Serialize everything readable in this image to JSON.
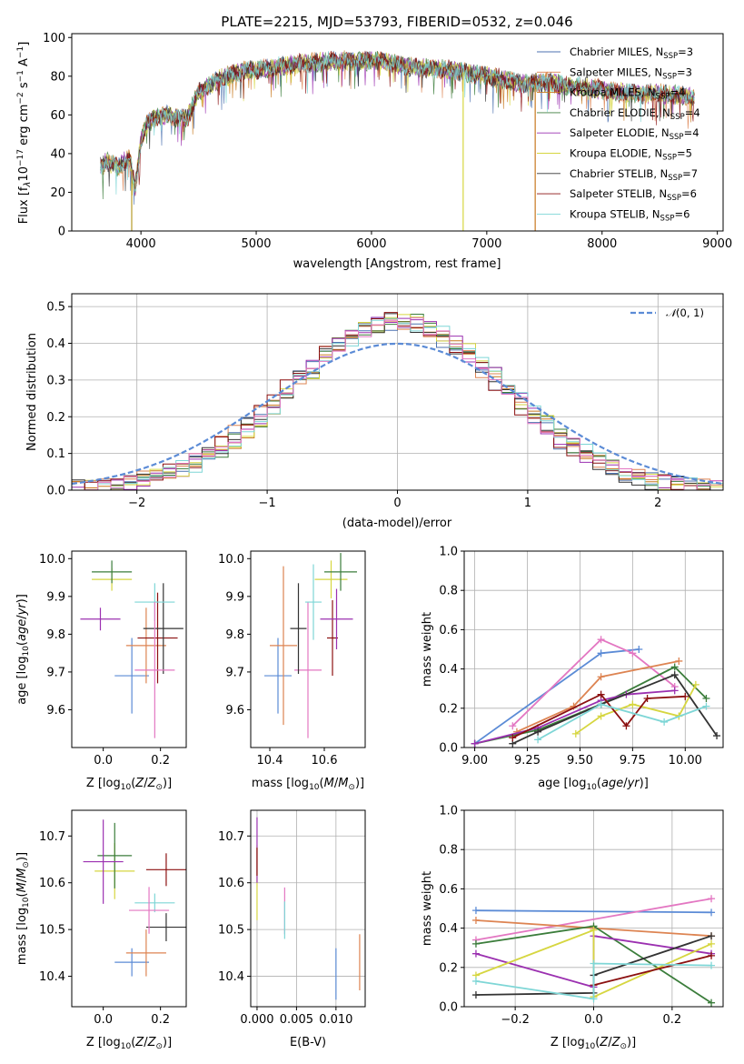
{
  "chart_data": [
    {
      "id": "spectrum",
      "type": "line",
      "title": "PLATE=2215, MJD=53793, FIBERID=0532, z=0.046",
      "xlabel": "wavelength [Angstrom, rest frame]",
      "ylabel": "Flux [f$_\\lambda$10$^{-17}$ erg cm$^{-2}$ s$^{-1}$ A$^{-1}$]",
      "xlim": [
        3400,
        9050
      ],
      "ylim": [
        0,
        102
      ],
      "xticks": [
        4000,
        5000,
        6000,
        7000,
        8000,
        9000
      ],
      "yticks": [
        0,
        20,
        40,
        60,
        80,
        100
      ],
      "legend_position": "upper-right",
      "legend": [
        {
          "name": "Chabrier MILES, N$_{SSP}$=3",
          "color": "#4c72b0"
        },
        {
          "name": "Salpeter MILES, N$_{SSP}$=3",
          "color": "#dd8452"
        },
        {
          "name": "Kroupa MILES, N$_{SSP}$=4",
          "color": "#c8791f"
        },
        {
          "name": "Chabrier ELODIE, N$_{SSP}$=4",
          "color": "#3b7d3b"
        },
        {
          "name": "Salpeter ELODIE, N$_{SSP}$=4",
          "color": "#9b30b0"
        },
        {
          "name": "Kroupa ELODIE, N$_{SSP}$=5",
          "color": "#d6d640"
        },
        {
          "name": "Chabrier STELIB, N$_{SSP}$=7",
          "color": "#333333"
        },
        {
          "name": "Salpeter STELIB, N$_{SSP}$=6",
          "color": "#8b1010"
        },
        {
          "name": "Kroupa STELIB, N$_{SSP}$=6",
          "color": "#7ed6d6"
        }
      ],
      "continuum": {
        "wavelength": [
          3650,
          3700,
          3800,
          3900,
          3950,
          4000,
          4050,
          4100,
          4200,
          4300,
          4400,
          4500,
          4700,
          4900,
          5100,
          5300,
          5500,
          5700,
          5900,
          6100,
          6300,
          6500,
          6700,
          6900,
          7100,
          7300,
          7500,
          7700,
          7900,
          8100,
          8300,
          8500,
          8700,
          8800
        ],
        "flux": [
          33,
          36,
          33,
          38,
          22,
          47,
          55,
          58,
          60,
          59,
          58,
          72,
          79,
          83,
          84,
          86,
          87,
          88,
          88,
          88,
          85,
          84,
          83,
          81,
          79,
          76,
          77,
          75,
          74,
          72,
          71,
          71,
          70,
          69
        ]
      },
      "drops": [
        {
          "wavelength": 3920,
          "depth": 0
        },
        {
          "wavelength": 6795,
          "depth": 0
        },
        {
          "wavelength": 7420,
          "depth": 0
        }
      ]
    },
    {
      "id": "residuals",
      "type": "histogram",
      "xlabel": "(data-model)/error",
      "ylabel": "Normed distribution",
      "xlim": [
        -2.5,
        2.5
      ],
      "ylim": [
        0,
        0.535
      ],
      "xticks": [
        -2,
        -1,
        0,
        1,
        2
      ],
      "yticks": [
        0.0,
        0.1,
        0.2,
        0.3,
        0.4,
        0.5
      ],
      "grid": true,
      "reference_curve": {
        "name": "$\\mathcal{N}(0,1)$",
        "mean": 0,
        "sigma": 1,
        "color": "#5b8bd6",
        "style": "dashed"
      },
      "legend_position": "upper-right",
      "bin_width": 0.1,
      "series_colors": [
        "#4c72b0",
        "#dd8452",
        "#c8791f",
        "#3b7d3b",
        "#9b30b0",
        "#d6d640",
        "#333333",
        "#8b1010",
        "#7ed6d6",
        "#e377c2"
      ],
      "peak": 0.46,
      "sigma": 0.82
    },
    {
      "id": "age-vs-Z",
      "type": "errorbar",
      "xlabel": "Z [log$_{10}$(Z/Z$_\\odot$)]",
      "ylabel": "age  [log$_{10}$(age/yr)]",
      "xlim": [
        -0.11,
        0.29
      ],
      "ylim": [
        9.5,
        10.02
      ],
      "xticks": [
        0.0,
        0.2
      ],
      "yticks": [
        9.6,
        9.7,
        9.8,
        9.9,
        10.0
      ],
      "points": [
        {
          "color": "#5b8bd6",
          "x": 0.1,
          "xerr": 0.06,
          "y": 9.69,
          "yerr": 0.1
        },
        {
          "color": "#dd8452",
          "x": 0.15,
          "xerr": 0.07,
          "y": 9.77,
          "yerr": 0.1
        },
        {
          "color": "#8b1010",
          "x": 0.19,
          "xerr": 0.07,
          "y": 9.79,
          "yerr": 0.12
        },
        {
          "color": "#333333",
          "x": 0.21,
          "xerr": 0.07,
          "y": 9.815,
          "yerr": 0.12
        },
        {
          "color": "#7ed6d6",
          "x": 0.18,
          "xerr": 0.07,
          "y": 9.885,
          "yerr": 0.05
        },
        {
          "color": "#e377c2",
          "x": 0.18,
          "xerr": 0.07,
          "y": 9.705,
          "yerr": 0.18
        },
        {
          "color": "#d6d640",
          "x": 0.03,
          "xerr": 0.07,
          "y": 9.945,
          "yerr": 0.03
        },
        {
          "color": "#3b7d3b",
          "x": 0.03,
          "xerr": 0.07,
          "y": 9.965,
          "yerr": 0.03
        },
        {
          "color": "#9b30b0",
          "x": -0.01,
          "xerr": 0.07,
          "y": 9.84,
          "yerr": 0.03
        }
      ]
    },
    {
      "id": "age-vs-mass",
      "type": "errorbar",
      "xlabel": "mass [log$_{10}$(M/M$_\\odot$)]",
      "ylabel": "",
      "xlim": [
        10.33,
        10.75
      ],
      "ylim": [
        9.5,
        10.02
      ],
      "xticks": [
        10.4,
        10.6
      ],
      "yticks": [
        9.6,
        9.7,
        9.8,
        9.9,
        10.0
      ],
      "points": [
        {
          "color": "#5b8bd6",
          "x": 10.43,
          "xerr": 0.05,
          "y": 9.69,
          "yerr": 0.1
        },
        {
          "color": "#dd8452",
          "x": 10.45,
          "xerr": 0.05,
          "y": 9.77,
          "yerr": 0.21
        },
        {
          "color": "#e377c2",
          "x": 10.54,
          "xerr": 0.05,
          "y": 9.705,
          "yerr": 0.18
        },
        {
          "color": "#333333",
          "x": 10.505,
          "xerr": 0.03,
          "y": 9.815,
          "yerr": 0.12
        },
        {
          "color": "#7ed6d6",
          "x": 10.56,
          "xerr": 0.03,
          "y": 9.885,
          "yerr": 0.1
        },
        {
          "color": "#d6d640",
          "x": 10.625,
          "xerr": 0.06,
          "y": 9.945,
          "yerr": 0.05
        },
        {
          "color": "#3b7d3b",
          "x": 10.66,
          "xerr": 0.06,
          "y": 9.965,
          "yerr": 0.05
        },
        {
          "color": "#8b1010",
          "x": 10.63,
          "xerr": 0.02,
          "y": 9.79,
          "yerr": 0.1
        },
        {
          "color": "#9b30b0",
          "x": 10.645,
          "xerr": 0.06,
          "y": 9.84,
          "yerr": 0.08
        }
      ]
    },
    {
      "id": "mass-weight-vs-age",
      "type": "line",
      "xlabel": "age  [log$_{10}$(age/yr)]",
      "ylabel": "mass weight",
      "xlim": [
        8.95,
        10.18
      ],
      "ylim": [
        0,
        1
      ],
      "xticks": [
        9.0,
        9.25,
        9.5,
        9.75,
        10.0
      ],
      "yticks": [
        0.0,
        0.2,
        0.4,
        0.6,
        0.8,
        1.0
      ],
      "grid": true,
      "series": [
        {
          "color": "#5b8bd6",
          "x": [
            9.0,
            9.6,
            9.78
          ],
          "y": [
            0.02,
            0.48,
            0.5
          ]
        },
        {
          "color": "#e377c2",
          "x": [
            9.18,
            9.6,
            9.75,
            9.95
          ],
          "y": [
            0.11,
            0.55,
            0.48,
            0.31
          ]
        },
        {
          "color": "#dd8452",
          "x": [
            9.2,
            9.47,
            9.6,
            9.97
          ],
          "y": [
            0.08,
            0.21,
            0.36,
            0.44
          ]
        },
        {
          "color": "#3b7d3b",
          "x": [
            9.0,
            9.3,
            9.6,
            9.95,
            10.1
          ],
          "y": [
            0.02,
            0.09,
            0.22,
            0.41,
            0.25
          ]
        },
        {
          "color": "#9b30b0",
          "x": [
            9.0,
            9.3,
            9.6,
            9.72,
            9.95
          ],
          "y": [
            0.02,
            0.1,
            0.24,
            0.27,
            0.29
          ]
        },
        {
          "color": "#d6d640",
          "x": [
            9.48,
            9.6,
            9.75,
            9.97,
            10.05
          ],
          "y": [
            0.07,
            0.16,
            0.22,
            0.16,
            0.32
          ]
        },
        {
          "color": "#333333",
          "x": [
            9.18,
            9.3,
            9.6,
            9.95,
            10.15
          ],
          "y": [
            0.02,
            0.08,
            0.22,
            0.37,
            0.06
          ]
        },
        {
          "color": "#8b1010",
          "x": [
            9.18,
            9.6,
            9.72,
            9.82,
            10.0
          ],
          "y": [
            0.05,
            0.27,
            0.11,
            0.25,
            0.26
          ]
        },
        {
          "color": "#7ed6d6",
          "x": [
            9.3,
            9.6,
            9.9,
            10.1
          ],
          "y": [
            0.04,
            0.22,
            0.13,
            0.21
          ]
        }
      ]
    },
    {
      "id": "mass-vs-Z",
      "type": "errorbar",
      "xlabel": "Z [log$_{10}$(Z/Z$_\\odot$)]",
      "ylabel": "mass [log$_{10}$(M/M$_\\odot$)]",
      "xlim": [
        -0.11,
        0.29
      ],
      "ylim": [
        10.335,
        10.755
      ],
      "xticks": [
        0.0,
        0.2
      ],
      "yticks": [
        10.4,
        10.5,
        10.6,
        10.7
      ],
      "points": [
        {
          "color": "#5b8bd6",
          "x": 0.1,
          "xerr": 0.06,
          "y": 10.43,
          "yerr": 0.03
        },
        {
          "color": "#dd8452",
          "x": 0.15,
          "xerr": 0.07,
          "y": 10.45,
          "yerr": 0.05
        },
        {
          "color": "#333333",
          "x": 0.22,
          "xerr": 0.07,
          "y": 10.505,
          "yerr": 0.03
        },
        {
          "color": "#7ed6d6",
          "x": 0.18,
          "xerr": 0.07,
          "y": 10.557,
          "yerr": 0.02
        },
        {
          "color": "#e377c2",
          "x": 0.16,
          "xerr": 0.07,
          "y": 10.541,
          "yerr": 0.05
        },
        {
          "color": "#8b1010",
          "x": 0.22,
          "xerr": 0.07,
          "y": 10.628,
          "yerr": 0.035
        },
        {
          "color": "#d6d640",
          "x": 0.04,
          "xerr": 0.07,
          "y": 10.625,
          "yerr": 0.06
        },
        {
          "color": "#3b7d3b",
          "x": 0.04,
          "xerr": 0.06,
          "y": 10.658,
          "yerr": 0.07
        },
        {
          "color": "#9b30b0",
          "x": 0.0,
          "xerr": 0.07,
          "y": 10.645,
          "yerr": 0.09
        }
      ]
    },
    {
      "id": "mass-vs-ebv",
      "type": "errorbar",
      "xlabel": "E(B-V)",
      "ylabel": "",
      "xlim": [
        -0.0008,
        0.0137
      ],
      "ylim": [
        10.335,
        10.755
      ],
      "xticks": [
        0.0,
        0.005,
        0.01
      ],
      "xticklabels": [
        "0.000",
        "0.005",
        "0.010"
      ],
      "yticks": [
        10.4,
        10.5,
        10.6,
        10.7
      ],
      "points": [
        {
          "color": "#5b8bd6",
          "x": 0.01,
          "xerr": 0,
          "y": 10.405,
          "yerr": 0.055
        },
        {
          "color": "#dd8452",
          "x": 0.013,
          "xerr": 0,
          "y": 10.43,
          "yerr": 0.06
        },
        {
          "color": "#e377c2",
          "x": 0.0035,
          "xerr": 0,
          "y": 10.54,
          "yerr": 0.05
        },
        {
          "color": "#7ed6d6",
          "x": 0.0035,
          "xerr": 0,
          "y": 10.52,
          "yerr": 0.04
        },
        {
          "color": "#d6d640",
          "x": 0.0,
          "xerr": 0,
          "y": 10.6,
          "yerr": 0.08
        },
        {
          "color": "#9b30b0",
          "x": 0.0,
          "xerr": 0,
          "y": 10.67,
          "yerr": 0.07
        },
        {
          "color": "#8b1010",
          "x": 0.0,
          "xerr": 0,
          "y": 10.645,
          "yerr": 0.03
        }
      ]
    },
    {
      "id": "mass-weight-vs-Z",
      "type": "line",
      "xlabel": "Z [log$_{10}$(Z/Z$_\\odot$)]",
      "ylabel": "mass weight",
      "xlim": [
        -0.33,
        0.33
      ],
      "ylim": [
        0,
        1
      ],
      "xticks": [
        -0.2,
        0.0,
        0.2
      ],
      "yticks": [
        0.0,
        0.2,
        0.4,
        0.6,
        0.8,
        1.0
      ],
      "grid": true,
      "series": [
        {
          "color": "#5b8bd6",
          "x": [
            -0.3,
            0.3
          ],
          "y": [
            0.49,
            0.48
          ]
        },
        {
          "color": "#e377c2",
          "x": [
            -0.3,
            0.3
          ],
          "y": [
            0.34,
            0.55
          ]
        },
        {
          "color": "#dd8452",
          "x": [
            -0.3,
            0.0,
            0.3
          ],
          "y": [
            0.44,
            0.4,
            0.36
          ]
        },
        {
          "color": "#3b7d3b",
          "x": [
            -0.3,
            0.0,
            0.3
          ],
          "y": [
            0.32,
            0.41,
            0.02
          ]
        },
        {
          "color": "#9b30b0",
          "x": [
            -0.3,
            0.0,
            0.0,
            0.3
          ],
          "y": [
            0.27,
            0.1,
            0.36,
            0.27
          ]
        },
        {
          "color": "#d6d640",
          "x": [
            -0.3,
            0.0,
            0.0,
            0.3
          ],
          "y": [
            0.16,
            0.39,
            0.05,
            0.32
          ]
        },
        {
          "color": "#333333",
          "x": [
            -0.3,
            0.0,
            0.0,
            0.3
          ],
          "y": [
            0.06,
            0.07,
            0.16,
            0.36
          ]
        },
        {
          "color": "#8b1010",
          "x": [
            0.0,
            0.3
          ],
          "y": [
            0.11,
            0.26
          ]
        },
        {
          "color": "#7ed6d6",
          "x": [
            -0.3,
            0.0,
            0.0,
            0.3
          ],
          "y": [
            0.13,
            0.04,
            0.22,
            0.21
          ]
        }
      ]
    }
  ]
}
